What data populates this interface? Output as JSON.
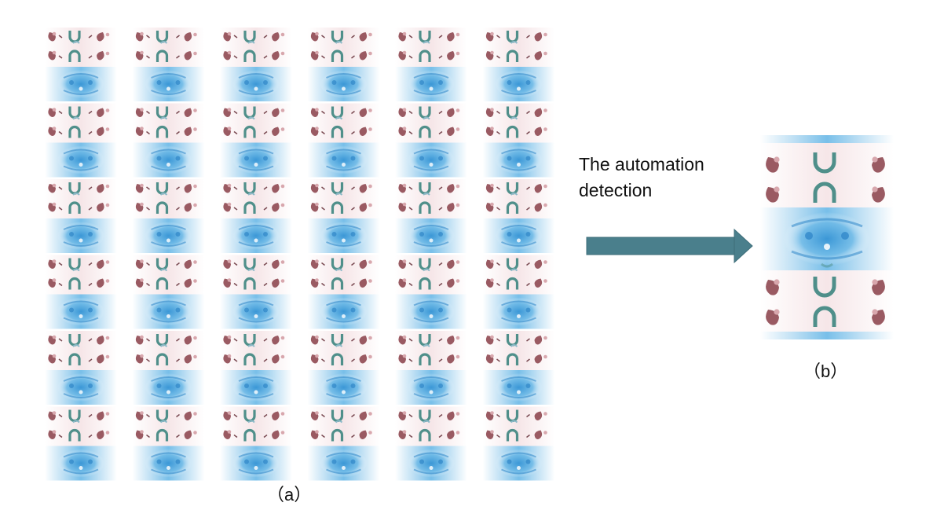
{
  "figure": {
    "caption_a": "（a）",
    "caption_b": "（b）",
    "arrow_label_line1": "The automation",
    "arrow_label_line2": "detection",
    "colors": {
      "background": "#ffffff",
      "arrow": "#4a7f8c",
      "arrow_outline": "#3d6d79",
      "tile_blue": "#4aa8e0",
      "tile_blue_light": "#bfe0f4",
      "tile_mauve": "#9a5a62",
      "tile_teal": "#4f8f8a",
      "tile_pink": "#f3e2e4"
    },
    "grid": {
      "columns": 6,
      "rows": 6
    },
    "icons": [
      "tiled-pattern-grid",
      "single-pattern-unit",
      "right-arrow-icon"
    ]
  }
}
